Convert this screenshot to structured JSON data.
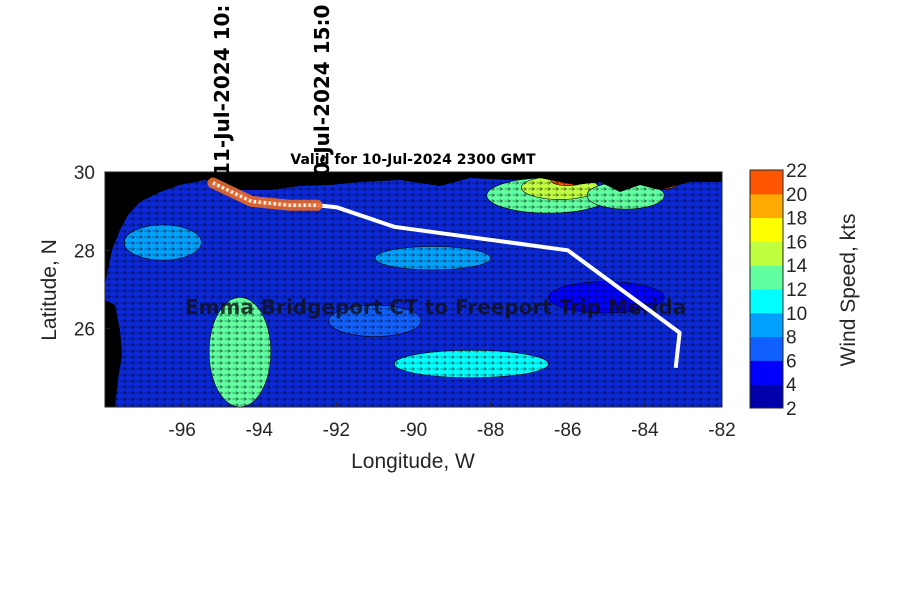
{
  "plot_title": "Valid for 10-Jul-2024 2300 GMT",
  "route_title": "Emma Bridgeport CT to Freeport Trip Merida",
  "xlabel": "Longitude, W",
  "ylabel": "Latitude, N",
  "colorbar_label": "Wind Speed, kts",
  "x_ticks": [
    "-96",
    "-94",
    "-92",
    "-90",
    "-88",
    "-86",
    "-84",
    "-82"
  ],
  "y_ticks": [
    "30",
    "28",
    "26"
  ],
  "colorbar_ticks": [
    "2",
    "4",
    "6",
    "8",
    "10",
    "12",
    "14",
    "16",
    "18",
    "20",
    "22"
  ],
  "colorbar_colors": [
    "#0000aa",
    "#0000ff",
    "#1060ff",
    "#00a0ff",
    "#00ffff",
    "#60ffa0",
    "#c0ff40",
    "#ffff00",
    "#ffaa00",
    "#ff5500"
  ],
  "time_labels": [
    {
      "text": "11-Jul-2024 10:",
      "lon": -95.2,
      "lat": 29.7
    },
    {
      "text": "0-Jul-2024 15:0",
      "lon": -92.5,
      "lat": 29.2
    }
  ],
  "map_data": {
    "lon_range": [
      -98,
      -82
    ],
    "lat_range": [
      24,
      30
    ],
    "route": [
      [
        -95.2,
        29.72
      ],
      [
        -94.2,
        29.25
      ],
      [
        -93.2,
        29.15
      ],
      [
        -92.5,
        29.15
      ],
      [
        -92,
        29.1
      ],
      [
        -90.5,
        28.6
      ],
      [
        -86,
        28.0
      ],
      [
        -83.1,
        25.9
      ],
      [
        -83.2,
        25.0
      ]
    ],
    "highlight_route": [
      [
        -95.2,
        29.72
      ],
      [
        -94.2,
        29.25
      ],
      [
        -93.2,
        29.15
      ],
      [
        -92.5,
        29.15
      ]
    ],
    "wind_patches": [
      {
        "lon": -86.5,
        "lat": 29.4,
        "rx": 1.6,
        "ry": 0.45,
        "color": "#60ffa0"
      },
      {
        "lon": -86.2,
        "lat": 29.6,
        "rx": 1.0,
        "ry": 0.3,
        "color": "#c0ff40"
      },
      {
        "lon": -86.0,
        "lat": 29.8,
        "rx": 0.45,
        "ry": 0.15,
        "color": "#ff5500"
      },
      {
        "lon": -83.6,
        "lat": 29.75,
        "rx": 0.5,
        "ry": 0.2,
        "color": "#ff5500"
      },
      {
        "lon": -84.5,
        "lat": 29.4,
        "rx": 1.0,
        "ry": 0.35,
        "color": "#60ffa0"
      },
      {
        "lon": -94.5,
        "lat": 25.4,
        "rx": 0.8,
        "ry": 1.4,
        "color": "#60ffa0"
      },
      {
        "lon": -88.5,
        "lat": 25.1,
        "rx": 2.0,
        "ry": 0.35,
        "color": "#00ffff"
      },
      {
        "lon": -96.5,
        "lat": 28.2,
        "rx": 1.0,
        "ry": 0.45,
        "color": "#00a0ff"
      },
      {
        "lon": -89.5,
        "lat": 27.8,
        "rx": 1.5,
        "ry": 0.3,
        "color": "#00a0ff"
      },
      {
        "lon": -91.0,
        "lat": 26.2,
        "rx": 1.2,
        "ry": 0.4,
        "color": "#1060ff"
      },
      {
        "lon": -85.0,
        "lat": 26.8,
        "rx": 1.5,
        "ry": 0.4,
        "color": "#0000ff"
      }
    ]
  }
}
